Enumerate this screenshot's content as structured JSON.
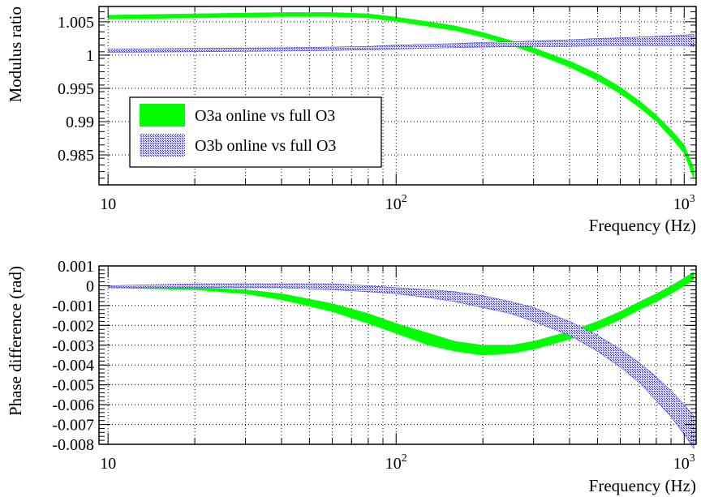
{
  "chart_data": [
    {
      "type": "area",
      "xlabel": "Frequency (Hz)",
      "ylabel": "Modulus ratio",
      "xscale": "log",
      "xlim": [
        9.3,
        1100
      ],
      "ylim": [
        0.9805,
        1.0073
      ],
      "x_ticks": [
        {
          "value": 10,
          "label": "10",
          "exp": ""
        },
        {
          "value": 100,
          "label": "10",
          "exp": "2"
        },
        {
          "value": 1000,
          "label": "10",
          "exp": "3"
        }
      ],
      "y_ticks": [
        {
          "value": 1.005,
          "label": "1.005"
        },
        {
          "value": 1.0,
          "label": "1"
        },
        {
          "value": 0.995,
          "label": "0.995"
        },
        {
          "value": 0.99,
          "label": "0.99"
        },
        {
          "value": 0.985,
          "label": "0.985"
        }
      ],
      "grid": true,
      "legend": {
        "position": "lower-left"
      },
      "series": [
        {
          "name": "O3a online vs full O3",
          "color": "#00ff00",
          "style": "solid-band",
          "x": [
            10,
            20,
            40,
            60,
            80,
            100,
            130,
            160,
            200,
            250,
            300,
            400,
            500,
            600,
            700,
            800,
            900,
            1000,
            1080
          ],
          "y_low": [
            1.0054,
            1.0056,
            1.0058,
            1.0058,
            1.0056,
            1.0051,
            1.0043,
            1.0037,
            1.0027,
            1.0015,
            1.0003,
            0.9982,
            0.9962,
            0.9942,
            0.9921,
            0.99,
            0.9876,
            0.9852,
            0.9814
          ],
          "y_high": [
            1.006,
            1.0062,
            1.0064,
            1.0064,
            1.0062,
            1.0057,
            1.005,
            1.0044,
            1.0034,
            1.0022,
            1.0011,
            0.9991,
            0.9972,
            0.9952,
            0.9931,
            0.991,
            0.9888,
            0.9865,
            0.983
          ]
        },
        {
          "name": "O3b online vs full O3",
          "color": "#2222cc",
          "style": "hatched-band",
          "x": [
            10,
            20,
            40,
            60,
            80,
            100,
            150,
            200,
            300,
            400,
            500,
            600,
            700,
            800,
            900,
            1000,
            1080
          ],
          "y_low": [
            1.0004,
            1.0005,
            1.0006,
            1.0007,
            1.0008,
            1.0009,
            1.0011,
            1.0012,
            1.0013,
            1.0013,
            1.0014,
            1.0014,
            1.0014,
            1.0014,
            1.0014,
            1.0014,
            1.0013
          ],
          "y_high": [
            1.0009,
            1.001,
            1.0011,
            1.0012,
            1.0013,
            1.0015,
            1.0017,
            1.0019,
            1.0021,
            1.0023,
            1.0025,
            1.0026,
            1.0027,
            1.0028,
            1.0029,
            1.003,
            1.0031
          ]
        }
      ]
    },
    {
      "type": "area",
      "xlabel": "Frequency (Hz)",
      "ylabel": "Phase difference (rad)",
      "xscale": "log",
      "xlim": [
        9.3,
        1100
      ],
      "ylim": [
        -0.008,
        0.001
      ],
      "x_ticks": [
        {
          "value": 10,
          "label": "10",
          "exp": ""
        },
        {
          "value": 100,
          "label": "10",
          "exp": "2"
        },
        {
          "value": 1000,
          "label": "10",
          "exp": "3"
        }
      ],
      "y_ticks": [
        {
          "value": 0.001,
          "label": "0.001"
        },
        {
          "value": 0,
          "label": "0"
        },
        {
          "value": -0.001,
          "label": "-0.001"
        },
        {
          "value": -0.002,
          "label": "-0.002"
        },
        {
          "value": -0.003,
          "label": "-0.003"
        },
        {
          "value": -0.004,
          "label": "-0.004"
        },
        {
          "value": -0.005,
          "label": "-0.005"
        },
        {
          "value": -0.006,
          "label": "-0.006"
        },
        {
          "value": -0.007,
          "label": "-0.007"
        },
        {
          "value": -0.008,
          "label": "-0.008"
        }
      ],
      "grid": true,
      "series": [
        {
          "name": "O3a online vs full O3",
          "color": "#00ff00",
          "style": "solid-band",
          "x": [
            10,
            20,
            30,
            40,
            60,
            80,
            100,
            130,
            160,
            200,
            250,
            300,
            400,
            500,
            600,
            700,
            800,
            900,
            1000,
            1080
          ],
          "y_low": [
            -0.0001,
            -0.0002,
            -0.0004,
            -0.0007,
            -0.0013,
            -0.0019,
            -0.0024,
            -0.003,
            -0.0033,
            -0.0035,
            -0.0034,
            -0.0032,
            -0.0027,
            -0.0022,
            -0.0017,
            -0.0012,
            -0.0008,
            -0.0004,
            0.0,
            0.0003
          ],
          "y_high": [
            0.0,
            -0.0001,
            -0.0002,
            -0.0004,
            -0.0009,
            -0.0014,
            -0.0019,
            -0.0024,
            -0.0028,
            -0.003,
            -0.003,
            -0.0028,
            -0.0023,
            -0.0018,
            -0.0013,
            -0.0008,
            -0.0004,
            0.0,
            0.0004,
            0.0007
          ]
        },
        {
          "name": "O3b online vs full O3",
          "color": "#2222cc",
          "style": "hatched-band",
          "x": [
            10,
            20,
            30,
            40,
            60,
            80,
            100,
            130,
            160,
            200,
            250,
            300,
            400,
            500,
            600,
            700,
            800,
            900,
            1000,
            1080
          ],
          "y_low": [
            -0.0001,
            -0.0001,
            -0.0001,
            -0.0001,
            -0.0002,
            -0.0003,
            -0.0004,
            -0.0006,
            -0.0008,
            -0.0011,
            -0.0014,
            -0.0018,
            -0.0025,
            -0.0033,
            -0.0041,
            -0.0049,
            -0.0058,
            -0.0066,
            -0.0075,
            -0.0082
          ],
          "y_high": [
            0.0,
            0.0001,
            0.0001,
            0.0001,
            0.0001,
            0.0,
            -0.0001,
            -0.0002,
            -0.0003,
            -0.0005,
            -0.0008,
            -0.0011,
            -0.0018,
            -0.0025,
            -0.0032,
            -0.0039,
            -0.0046,
            -0.0053,
            -0.006,
            -0.0066
          ]
        }
      ]
    }
  ]
}
